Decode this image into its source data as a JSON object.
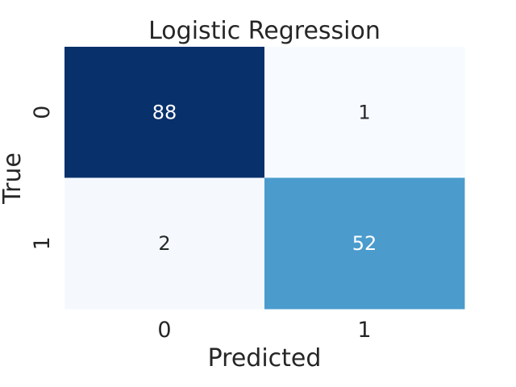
{
  "chart_data": {
    "type": "heatmap",
    "title": "Logistic Regression",
    "xlabel": "Predicted",
    "ylabel": "True",
    "x_categories": [
      "0",
      "1"
    ],
    "y_categories": [
      "0",
      "1"
    ],
    "values": [
      [
        88,
        1
      ],
      [
        2,
        52
      ]
    ],
    "colormap": "Blues",
    "colorbar": false,
    "grid": false,
    "cell_colors": [
      [
        "#08306b",
        "#f7fbff"
      ],
      [
        "#f5f9fe",
        "#4b9bcd"
      ]
    ],
    "text_colors": [
      [
        "#ffffff",
        "#262626"
      ],
      [
        "#262626",
        "#ffffff"
      ]
    ]
  }
}
